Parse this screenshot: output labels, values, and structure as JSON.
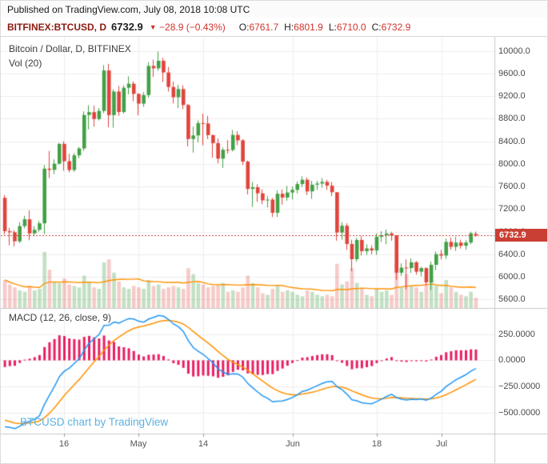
{
  "published_bar": {
    "text": "Published on TradingView.com, July 08, 2018 10:08 UTC"
  },
  "symbol_bar": {
    "symbol": "BITFINEX:BTCUSD, D",
    "last_price": "6732.9",
    "direction_icon": "▼",
    "change": "−28.9 (−0.43%)",
    "ohlc": [
      {
        "label": "O:",
        "value": "6761.7"
      },
      {
        "label": "H:",
        "value": "6801.9"
      },
      {
        "label": "L:",
        "value": "6710.0"
      },
      {
        "label": "C:",
        "value": "6732.9"
      }
    ]
  },
  "main_pane": {
    "title": "Bitcoin / Dollar, D, BITFINEX",
    "volume_label": "Vol (20)"
  },
  "macd_pane": {
    "title": "MACD (12, 26, close, 9)"
  },
  "watermark": "BTCUSD chart by TradingView",
  "colors": {
    "up": "#43a047",
    "down": "#e0443c",
    "volume_up": "rgba(67,160,71,0.32)",
    "volume_down": "rgba(224,68,60,0.28)",
    "volume_ma": "#ff9100",
    "macd_line": "#2196f3",
    "macd_signal": "#ff9100",
    "macd_hist": "#e91e63",
    "grid": "#ececec",
    "axis_line": "#c9c9c9",
    "axis_text": "#4a4a4a",
    "badge_bg": "#ca3f34",
    "badge_text": "#ffffff",
    "symbol_text": "#8b1a10",
    "change_text": "#d0342c",
    "watermark": "#5cb2e0"
  },
  "chart_data": {
    "type": "candlestick",
    "title": "Bitcoin / Dollar, D, BITFINEX",
    "symbol": "BTCUSD",
    "exchange": "BITFINEX",
    "interval": "D",
    "panes": [
      "price+volume",
      "macd"
    ],
    "start_date": "2018-04-04",
    "end_date": "2018-07-08",
    "last_price": 6732.9,
    "price_axis": {
      "ticks": [
        10000,
        9600,
        9200,
        8800,
        8400,
        8000,
        7600,
        7200,
        6800,
        6400,
        6000,
        5600
      ],
      "min": 5450,
      "max": 10250,
      "format_decimals": 1
    },
    "macd_axis": {
      "ticks": [
        250,
        0,
        -250,
        -500
      ],
      "min": -700,
      "max": 500,
      "format_decimals": 4
    },
    "x_ticks": [
      {
        "label": "16",
        "index": 12
      },
      {
        "label": "May",
        "index": 27
      },
      {
        "label": "14",
        "index": 40
      },
      {
        "label": "Jun",
        "index": 58
      },
      {
        "label": "18",
        "index": 75
      },
      {
        "label": "Jul",
        "index": 88
      }
    ],
    "indicators": {
      "volume_ma_length": 20,
      "macd": {
        "fast": 12,
        "slow": 26,
        "signal": 9,
        "source": "close"
      }
    },
    "macd_warmup_closes": [
      9700,
      9650,
      10300,
      10270,
      10320,
      10900,
      11000,
      11400,
      11500,
      11440,
      10720,
      9900,
      9300,
      8800,
      9550,
      9150,
      9150,
      8200,
      8270,
      8285,
      7890,
      8200,
      8600,
      8900,
      8915,
      8720,
      8925,
      8535,
      8450,
      8140,
      7790,
      7950,
      7100,
      6850,
      6925,
      6840,
      7070,
      7410
    ],
    "candles": [
      [
        7400,
        7450,
        6750,
        6810,
        95
      ],
      [
        6810,
        6870,
        6560,
        6790,
        80
      ],
      [
        6790,
        6830,
        6540,
        6630,
        70
      ],
      [
        6630,
        6970,
        6600,
        6900,
        60
      ],
      [
        6900,
        7080,
        6860,
        7020,
        55
      ],
      [
        7020,
        7180,
        6650,
        6770,
        75
      ],
      [
        6770,
        6900,
        6720,
        6834,
        60
      ],
      [
        6834,
        6990,
        6800,
        6949,
        65
      ],
      [
        6949,
        7980,
        6755,
        7916,
        190
      ],
      [
        7916,
        8230,
        7750,
        7895,
        130
      ],
      [
        7895,
        8080,
        7820,
        8004,
        90
      ],
      [
        8004,
        8370,
        7990,
        8355,
        85
      ],
      [
        8355,
        8400,
        7880,
        8048,
        100
      ],
      [
        8048,
        8180,
        7850,
        7892,
        80
      ],
      [
        7892,
        8190,
        7860,
        8152,
        75
      ],
      [
        8152,
        8300,
        8100,
        8274,
        70
      ],
      [
        8274,
        8930,
        8230,
        8866,
        110
      ],
      [
        8866,
        9040,
        8610,
        8917,
        90
      ],
      [
        8917,
        9030,
        8660,
        8795,
        70
      ],
      [
        8795,
        8990,
        8770,
        8938,
        65
      ],
      [
        8938,
        9750,
        8900,
        9654,
        155
      ],
      [
        9654,
        9770,
        8650,
        8864,
        165
      ],
      [
        8864,
        9320,
        8640,
        9281,
        120
      ],
      [
        9281,
        9380,
        8850,
        8919,
        90
      ],
      [
        8919,
        9390,
        8890,
        9348,
        70
      ],
      [
        9348,
        9550,
        9230,
        9419,
        65
      ],
      [
        9419,
        9460,
        9110,
        9240,
        75
      ],
      [
        9240,
        9250,
        8860,
        9067,
        70
      ],
      [
        9067,
        9270,
        9010,
        9219,
        65
      ],
      [
        9219,
        9800,
        9170,
        9734,
        95
      ],
      [
        9734,
        9845,
        9540,
        9692,
        75
      ],
      [
        9692,
        9990,
        9650,
        9826,
        80
      ],
      [
        9826,
        9880,
        9450,
        9619,
        65
      ],
      [
        9619,
        9715,
        9280,
        9362,
        70
      ],
      [
        9362,
        9460,
        9070,
        9180,
        75
      ],
      [
        9180,
        9400,
        8990,
        9325,
        70
      ],
      [
        9325,
        9390,
        8970,
        9043,
        65
      ],
      [
        9043,
        9060,
        8310,
        8441,
        135
      ],
      [
        8441,
        8660,
        8200,
        8504,
        115
      ],
      [
        8504,
        8770,
        8380,
        8723,
        85
      ],
      [
        8723,
        8890,
        8330,
        8716,
        80
      ],
      [
        8716,
        8850,
        8440,
        8510,
        70
      ],
      [
        8510,
        8520,
        8110,
        8368,
        75
      ],
      [
        8368,
        8450,
        8010,
        8094,
        80
      ],
      [
        8094,
        8290,
        7930,
        8250,
        85
      ],
      [
        8250,
        8420,
        8180,
        8247,
        55
      ],
      [
        8247,
        8600,
        8220,
        8513,
        60
      ],
      [
        8513,
        8580,
        8330,
        8418,
        55
      ],
      [
        8418,
        8440,
        7980,
        8041,
        70
      ],
      [
        8041,
        8060,
        7460,
        7558,
        110
      ],
      [
        7558,
        7680,
        7240,
        7587,
        85
      ],
      [
        7587,
        7640,
        7330,
        7480,
        70
      ],
      [
        7480,
        7550,
        7290,
        7355,
        50
      ],
      [
        7355,
        7430,
        7230,
        7368,
        45
      ],
      [
        7368,
        7400,
        7060,
        7135,
        65
      ],
      [
        7135,
        7530,
        7060,
        7472,
        75
      ],
      [
        7472,
        7550,
        7280,
        7406,
        55
      ],
      [
        7406,
        7610,
        7350,
        7494,
        60
      ],
      [
        7494,
        7600,
        7370,
        7541,
        55
      ],
      [
        7541,
        7690,
        7480,
        7643,
        45
      ],
      [
        7643,
        7780,
        7590,
        7720,
        40
      ],
      [
        7720,
        7760,
        7450,
        7514,
        60
      ],
      [
        7514,
        7700,
        7380,
        7633,
        55
      ],
      [
        7633,
        7700,
        7540,
        7653,
        45
      ],
      [
        7653,
        7750,
        7580,
        7682,
        40
      ],
      [
        7682,
        7720,
        7540,
        7616,
        45
      ],
      [
        7616,
        7680,
        7430,
        7499,
        40
      ],
      [
        7499,
        7500,
        6640,
        6786,
        150
      ],
      [
        6786,
        6970,
        6660,
        6906,
        80
      ],
      [
        6906,
        6950,
        6480,
        6583,
        90
      ],
      [
        6583,
        6660,
        6100,
        6314,
        135
      ],
      [
        6314,
        6690,
        6270,
        6655,
        85
      ],
      [
        6655,
        6720,
        6380,
        6456,
        70
      ],
      [
        6456,
        6580,
        6390,
        6505,
        45
      ],
      [
        6505,
        6560,
        6400,
        6469,
        40
      ],
      [
        6469,
        6770,
        6390,
        6710,
        65
      ],
      [
        6710,
        6810,
        6620,
        6736,
        55
      ],
      [
        6736,
        6840,
        6580,
        6769,
        60
      ],
      [
        6769,
        6800,
        6640,
        6734,
        45
      ],
      [
        6734,
        6740,
        5950,
        6075,
        155
      ],
      [
        6075,
        6240,
        6020,
        6165,
        70
      ],
      [
        6165,
        6310,
        5780,
        6157,
        115
      ],
      [
        6157,
        6330,
        6070,
        6259,
        75
      ],
      [
        6259,
        6280,
        6040,
        6093,
        70
      ],
      [
        6093,
        6180,
        6010,
        6156,
        55
      ],
      [
        6156,
        6170,
        5850,
        5903,
        80
      ],
      [
        5903,
        6270,
        5770,
        6214,
        95
      ],
      [
        6214,
        6450,
        6120,
        6404,
        75
      ],
      [
        6404,
        6480,
        6310,
        6379,
        50
      ],
      [
        6379,
        6680,
        6320,
        6620,
        95
      ],
      [
        6620,
        6700,
        6480,
        6533,
        70
      ],
      [
        6533,
        6710,
        6460,
        6607,
        55
      ],
      [
        6607,
        6660,
        6500,
        6552,
        45
      ],
      [
        6552,
        6650,
        6480,
        6609,
        40
      ],
      [
        6609,
        6800,
        6580,
        6772,
        55
      ],
      [
        6761.7,
        6801.9,
        6710,
        6732.9,
        35
      ]
    ]
  }
}
